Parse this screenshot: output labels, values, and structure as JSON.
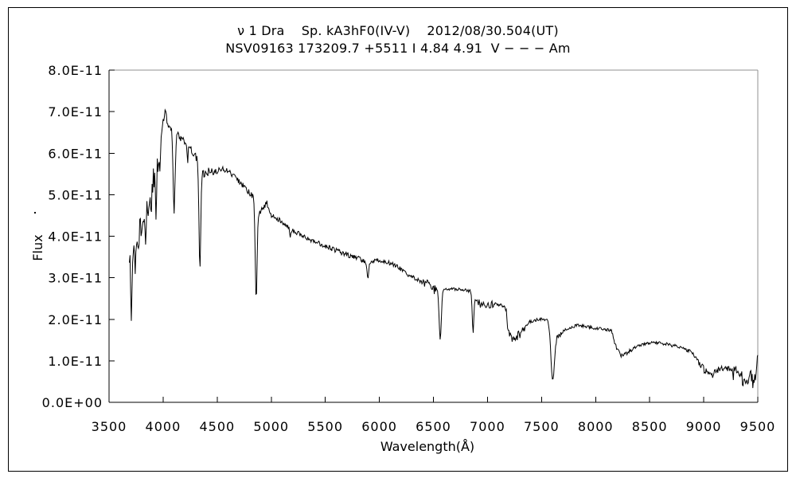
{
  "header": {
    "title_line1": "ν 1 Dra    Sp. kA3hF0(IV-V)    2012/08/30.504(UT)",
    "title_line2": "NSV09163 173209.7 +5511 I 4.84 4.91  V − − − Am"
  },
  "chart_data": {
    "type": "line",
    "title": "ν 1 Dra    Sp. kA3hF0(IV-V)    2012/08/30.504(UT)",
    "subtitle": "NSV09163 173209.7 +5511 I 4.84 4.91  V − − − Am",
    "xlabel": "Wavelength(Å)",
    "ylabel": "Flux",
    "xlim": [
      3500,
      9500
    ],
    "ylim": [
      0,
      8e-11
    ],
    "grid": false,
    "legend": "none",
    "line_color": "#000000",
    "axis_color": "#000000",
    "plot_border_top_right_color": "#909090",
    "x_ticks": [
      3500,
      4000,
      4500,
      5000,
      5500,
      6000,
      6500,
      7000,
      7500,
      8000,
      8500,
      9000,
      9500
    ],
    "y_tick_values_1e11": [
      0,
      1,
      2,
      3,
      4,
      5,
      6,
      7,
      8
    ],
    "y_tick_labels": [
      "0.0E+00",
      "1.0E-11",
      "2.0E-11",
      "3.0E-11",
      "4.0E-11",
      "5.0E-11",
      "6.0E-11",
      "7.0E-11",
      "8.0E-11"
    ],
    "series": [
      {
        "name": "spectrum",
        "color": "#000000",
        "flux_scale": 1e-11,
        "x_start": 3688,
        "x_end": 9500,
        "sample_step_angstrom": 6,
        "noise_base": 0.04,
        "continuum_anchors": [
          [
            3688,
            3.55
          ],
          [
            3710,
            3.7
          ],
          [
            3740,
            3.8
          ],
          [
            3775,
            4.1
          ],
          [
            3810,
            4.3
          ],
          [
            3845,
            4.6
          ],
          [
            3875,
            4.9
          ],
          [
            3900,
            5.3
          ],
          [
            3925,
            5.55
          ],
          [
            3950,
            5.8
          ],
          [
            3975,
            6.3
          ],
          [
            4000,
            6.8
          ],
          [
            4025,
            7.0
          ],
          [
            4045,
            6.65
          ],
          [
            4065,
            6.7
          ],
          [
            4085,
            6.45
          ],
          [
            4120,
            6.45
          ],
          [
            4150,
            6.4
          ],
          [
            4200,
            6.3
          ],
          [
            4250,
            6.1
          ],
          [
            4300,
            5.95
          ],
          [
            4365,
            5.5
          ],
          [
            4420,
            5.55
          ],
          [
            4480,
            5.55
          ],
          [
            4530,
            5.62
          ],
          [
            4580,
            5.6
          ],
          [
            4630,
            5.5
          ],
          [
            4680,
            5.38
          ],
          [
            4730,
            5.25
          ],
          [
            4780,
            5.1
          ],
          [
            4830,
            4.95
          ],
          [
            4890,
            4.55
          ],
          [
            4930,
            4.7
          ],
          [
            4960,
            4.8
          ],
          [
            5000,
            4.5
          ],
          [
            5060,
            4.42
          ],
          [
            5120,
            4.32
          ],
          [
            5200,
            4.15
          ],
          [
            5300,
            4.0
          ],
          [
            5400,
            3.88
          ],
          [
            5500,
            3.76
          ],
          [
            5600,
            3.66
          ],
          [
            5700,
            3.56
          ],
          [
            5800,
            3.47
          ],
          [
            5860,
            3.4
          ],
          [
            5930,
            3.4
          ],
          [
            6000,
            3.42
          ],
          [
            6080,
            3.37
          ],
          [
            6160,
            3.28
          ],
          [
            6250,
            3.1
          ],
          [
            6350,
            2.95
          ],
          [
            6420,
            2.87
          ],
          [
            6480,
            2.77
          ],
          [
            6540,
            2.7
          ],
          [
            6610,
            2.72
          ],
          [
            6700,
            2.73
          ],
          [
            6800,
            2.7
          ],
          [
            6845,
            2.66
          ],
          [
            6905,
            2.45
          ],
          [
            6950,
            2.32
          ],
          [
            7000,
            2.3
          ],
          [
            7060,
            2.38
          ],
          [
            7120,
            2.35
          ],
          [
            7165,
            2.3
          ],
          [
            7200,
            1.62
          ],
          [
            7245,
            1.55
          ],
          [
            7290,
            1.62
          ],
          [
            7330,
            1.75
          ],
          [
            7375,
            1.92
          ],
          [
            7430,
            1.98
          ],
          [
            7490,
            2.0
          ],
          [
            7555,
            2.0
          ],
          [
            7660,
            1.58
          ],
          [
            7705,
            1.72
          ],
          [
            7770,
            1.8
          ],
          [
            7830,
            1.86
          ],
          [
            7900,
            1.83
          ],
          [
            8000,
            1.78
          ],
          [
            8090,
            1.76
          ],
          [
            8150,
            1.72
          ],
          [
            8195,
            1.28
          ],
          [
            8235,
            1.13
          ],
          [
            8275,
            1.17
          ],
          [
            8315,
            1.25
          ],
          [
            8370,
            1.33
          ],
          [
            8430,
            1.4
          ],
          [
            8500,
            1.43
          ],
          [
            8580,
            1.43
          ],
          [
            8660,
            1.4
          ],
          [
            8730,
            1.36
          ],
          [
            8800,
            1.3
          ],
          [
            8870,
            1.22
          ],
          [
            8920,
            1.1
          ],
          [
            8960,
            0.95
          ],
          [
            9000,
            0.8
          ],
          [
            9040,
            0.68
          ],
          [
            9080,
            0.66
          ],
          [
            9130,
            0.78
          ],
          [
            9180,
            0.85
          ],
          [
            9230,
            0.8
          ],
          [
            9280,
            0.72
          ],
          [
            9330,
            0.6
          ],
          [
            9380,
            0.55
          ],
          [
            9430,
            0.62
          ],
          [
            9465,
            0.5
          ],
          [
            9480,
            0.6
          ],
          [
            9492,
            1.0
          ],
          [
            9500,
            1.15
          ]
        ],
        "absorption_lines": [
          [
            3706,
            9,
            2.05
          ],
          [
            3742,
            6,
            3.3
          ],
          [
            3772,
            6,
            3.6
          ],
          [
            3800,
            6,
            3.85
          ],
          [
            3837,
            8,
            3.85
          ],
          [
            3890,
            8,
            4.55
          ],
          [
            3934,
            8,
            4.45
          ],
          [
            3969,
            9,
            5.6
          ],
          [
            4102,
            12,
            4.62
          ],
          [
            4227,
            6,
            5.8
          ],
          [
            4340,
            12,
            3.3
          ],
          [
            4861,
            12,
            2.53
          ],
          [
            5175,
            9,
            4.0
          ],
          [
            5893,
            11,
            2.97
          ],
          [
            6563,
            14,
            1.48
          ],
          [
            6867,
            10,
            1.68
          ],
          [
            7605,
            24,
            0.55
          ]
        ],
        "noise_segments": [
          [
            3688,
            3960,
            0.28
          ],
          [
            3960,
            4460,
            0.1
          ],
          [
            4460,
            5060,
            0.07
          ],
          [
            5060,
            5850,
            0.06
          ],
          [
            5850,
            6390,
            0.05
          ],
          [
            6390,
            6530,
            0.13
          ],
          [
            6530,
            6830,
            0.035
          ],
          [
            6830,
            6900,
            0.05
          ],
          [
            6900,
            7060,
            0.1
          ],
          [
            7060,
            7170,
            0.04
          ],
          [
            7170,
            7350,
            0.12
          ],
          [
            7350,
            7580,
            0.04
          ],
          [
            7580,
            7690,
            0.07
          ],
          [
            7690,
            8150,
            0.035
          ],
          [
            8150,
            8340,
            0.055
          ],
          [
            8340,
            8700,
            0.035
          ],
          [
            8700,
            8950,
            0.05
          ],
          [
            8950,
            9250,
            0.085
          ],
          [
            9250,
            9500,
            0.2
          ]
        ]
      }
    ]
  }
}
